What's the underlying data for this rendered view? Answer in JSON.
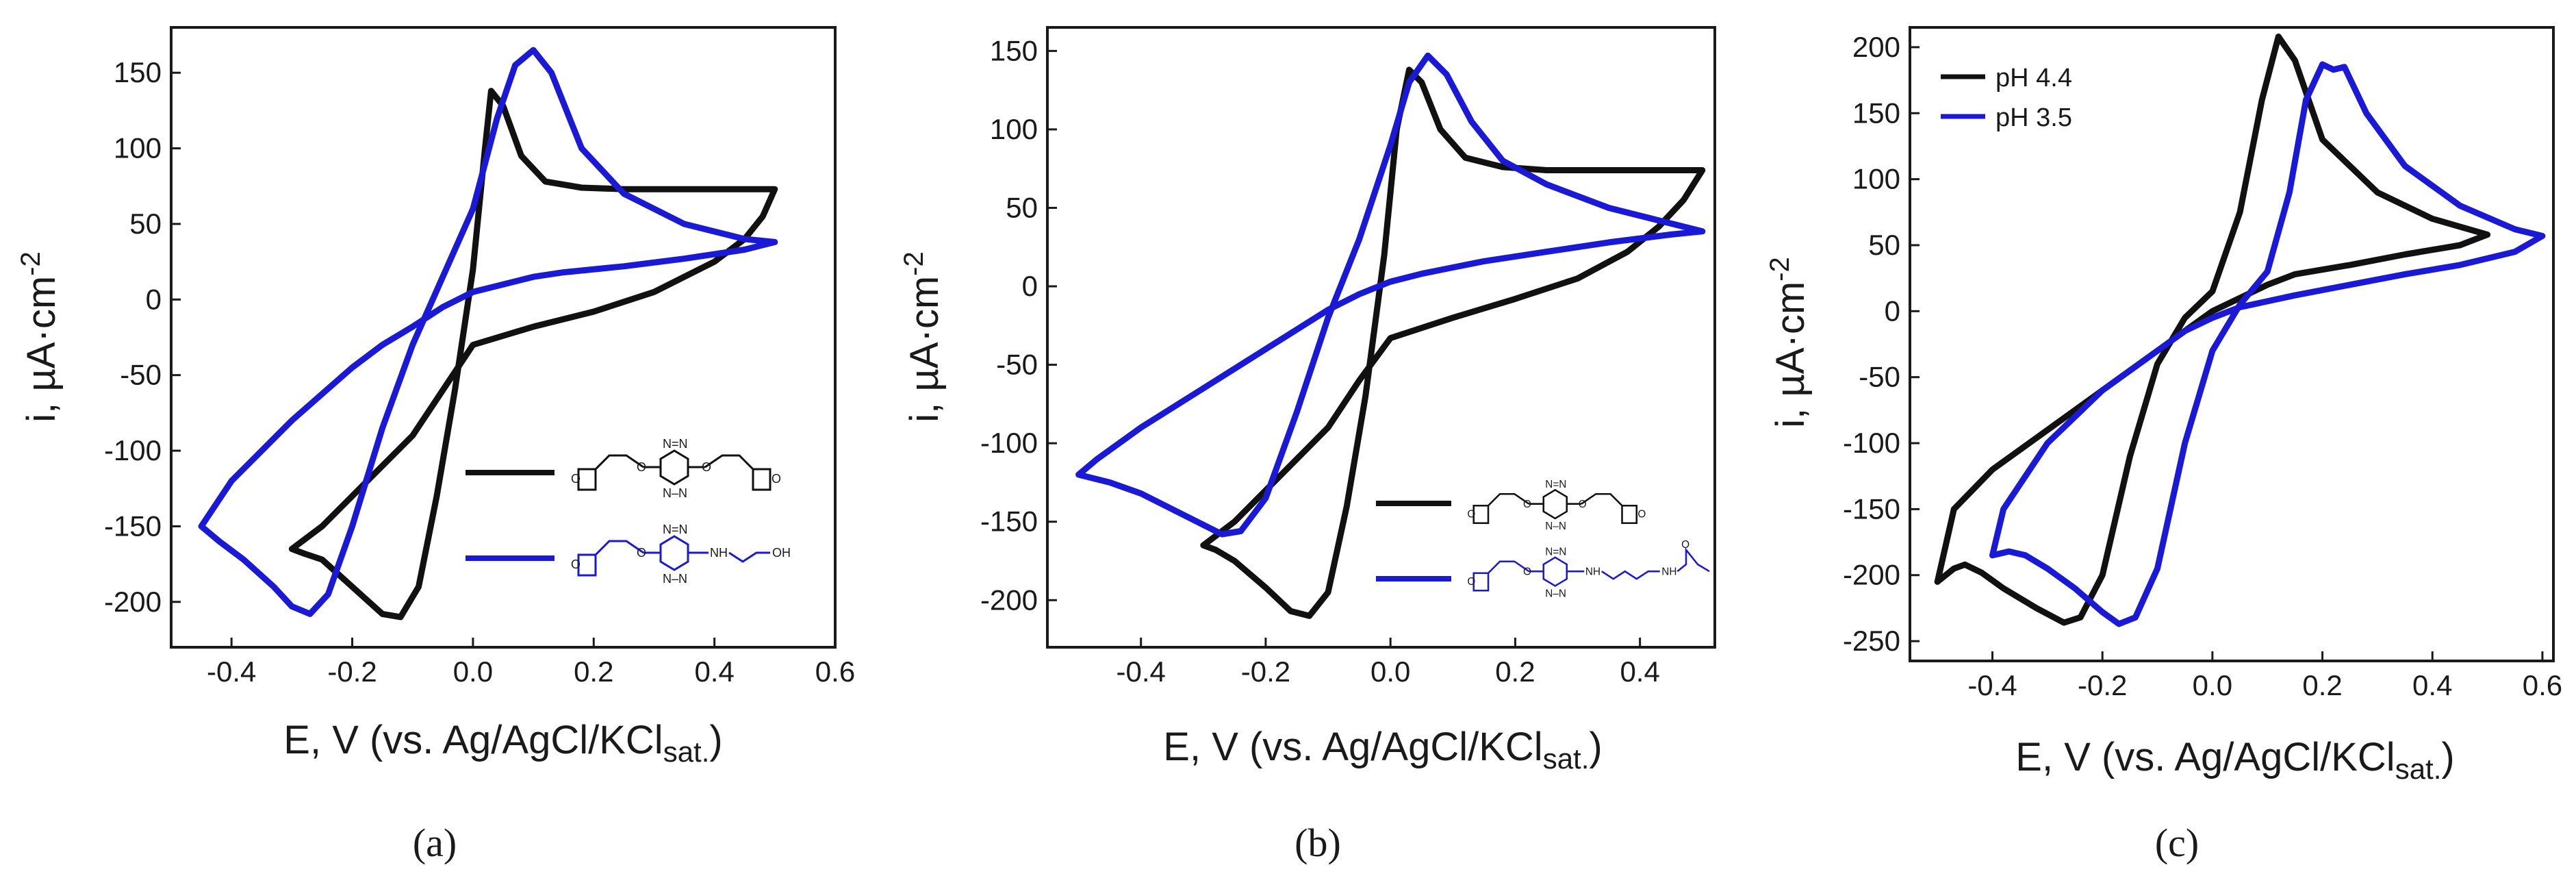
{
  "colors": {
    "black": "#111111",
    "blue": "#1a1ad6",
    "axis": "#1a1a1a"
  },
  "chart_data": [
    {
      "type": "line",
      "caption": "(a)",
      "xlabel_main": "E, V (vs. Ag/AgCl/KCl",
      "xlabel_sub": "sat.",
      "xlabel_close": ")",
      "ylabel": "i, µA·cm",
      "ylabel_sup": "-2",
      "xlim": [
        -0.5,
        0.6
      ],
      "ylim": [
        -230,
        180
      ],
      "xticks": [
        -0.4,
        -0.2,
        0.0,
        0.2,
        0.4,
        0.6
      ],
      "xtick_labels": [
        "-0.4",
        "-0.2",
        "0.0",
        "0.2",
        "0.4",
        "0.6"
      ],
      "yticks": [
        -200,
        -150,
        -100,
        -50,
        0,
        50,
        100,
        150
      ],
      "ytick_labels": [
        "-200",
        "-150",
        "-100",
        "-50",
        "0",
        "50",
        "100",
        "150"
      ],
      "legend": {
        "placement": "bottom-right",
        "type": "molecule-structures"
      },
      "series": [
        {
          "name": "bis(ethoxymorpholinoethoxy)-tetrazine",
          "color": "black",
          "x": [
            -0.3,
            -0.28,
            -0.25,
            -0.2,
            -0.15,
            -0.12,
            -0.09,
            -0.06,
            -0.03,
            0.0,
            0.02,
            0.03,
            0.05,
            0.08,
            0.12,
            0.18,
            0.25,
            0.35,
            0.45,
            0.5,
            0.48,
            0.45,
            0.4,
            0.3,
            0.2,
            0.1,
            0.0,
            -0.05,
            -0.1,
            -0.15,
            -0.2,
            -0.25,
            -0.3
          ],
          "y": [
            -165,
            -168,
            -172,
            -190,
            -208,
            -210,
            -190,
            -130,
            -60,
            20,
            100,
            138,
            128,
            95,
            78,
            74,
            73,
            73,
            73,
            73,
            55,
            40,
            25,
            5,
            -8,
            -18,
            -30,
            -60,
            -90,
            -110,
            -130,
            -150,
            -165
          ]
        },
        {
          "name": "ethoxymorpholino-aminoethanol-tetrazine",
          "color": "blue",
          "x": [
            -0.45,
            -0.42,
            -0.38,
            -0.33,
            -0.3,
            -0.27,
            -0.24,
            -0.2,
            -0.15,
            -0.1,
            -0.05,
            0.0,
            0.04,
            0.07,
            0.1,
            0.13,
            0.18,
            0.25,
            0.35,
            0.45,
            0.5,
            0.45,
            0.35,
            0.25,
            0.15,
            0.1,
            0.05,
            0.0,
            -0.05,
            -0.1,
            -0.15,
            -0.2,
            -0.3,
            -0.4,
            -0.45
          ],
          "y": [
            -150,
            -160,
            -172,
            -190,
            -203,
            -208,
            -195,
            -150,
            -85,
            -30,
            15,
            60,
            120,
            155,
            165,
            150,
            100,
            70,
            50,
            40,
            38,
            33,
            27,
            22,
            18,
            15,
            10,
            5,
            -5,
            -18,
            -30,
            -45,
            -80,
            -120,
            -150
          ]
        }
      ]
    },
    {
      "type": "line",
      "caption": "(b)",
      "xlabel_main": "E, V (vs. Ag/AgCl/KCl",
      "xlabel_sub": "sat.",
      "xlabel_close": ")",
      "ylabel": "i, µA·cm",
      "ylabel_sup": "-2",
      "xlim": [
        -0.55,
        0.52
      ],
      "ylim": [
        -230,
        165
      ],
      "xticks": [
        -0.4,
        -0.2,
        0.0,
        0.2,
        0.4
      ],
      "xtick_labels": [
        "-0.4",
        "-0.2",
        "0.0",
        "0.2",
        "0.4"
      ],
      "yticks": [
        -200,
        -150,
        -100,
        -50,
        0,
        50,
        100,
        150
      ],
      "ytick_labels": [
        "-200",
        "-150",
        "-100",
        "-50",
        "0",
        "50",
        "100",
        "150"
      ],
      "legend": {
        "placement": "bottom-right",
        "type": "molecule-structures"
      },
      "series": [
        {
          "name": "bis(ethoxymorpholinoethoxy)-tetrazine",
          "color": "black",
          "x": [
            -0.3,
            -0.28,
            -0.25,
            -0.2,
            -0.16,
            -0.13,
            -0.1,
            -0.07,
            -0.04,
            -0.01,
            0.01,
            0.03,
            0.05,
            0.08,
            0.12,
            0.18,
            0.25,
            0.35,
            0.45,
            0.5,
            0.47,
            0.43,
            0.38,
            0.3,
            0.2,
            0.1,
            0.0,
            -0.05,
            -0.1,
            -0.15,
            -0.2,
            -0.25,
            -0.3
          ],
          "y": [
            -165,
            -168,
            -175,
            -192,
            -207,
            -210,
            -195,
            -140,
            -70,
            20,
            100,
            138,
            130,
            100,
            82,
            76,
            74,
            74,
            74,
            74,
            55,
            38,
            22,
            5,
            -8,
            -20,
            -33,
            -60,
            -90,
            -110,
            -130,
            -150,
            -165
          ]
        },
        {
          "name": "ethoxymorpholino-methacrylamidopropyl-tetrazine",
          "color": "blue",
          "x": [
            -0.5,
            -0.45,
            -0.4,
            -0.35,
            -0.3,
            -0.27,
            -0.24,
            -0.2,
            -0.15,
            -0.1,
            -0.05,
            0.0,
            0.03,
            0.06,
            0.09,
            0.13,
            0.18,
            0.25,
            0.35,
            0.45,
            0.5,
            0.45,
            0.35,
            0.25,
            0.15,
            0.1,
            0.05,
            0.0,
            -0.05,
            -0.1,
            -0.2,
            -0.3,
            -0.4,
            -0.47,
            -0.5
          ],
          "y": [
            -120,
            -125,
            -132,
            -142,
            -152,
            -158,
            -156,
            -135,
            -80,
            -20,
            30,
            90,
            130,
            147,
            135,
            105,
            80,
            65,
            50,
            40,
            35,
            33,
            28,
            22,
            16,
            12,
            8,
            3,
            -5,
            -15,
            -40,
            -65,
            -90,
            -110,
            -120
          ]
        }
      ]
    },
    {
      "type": "line",
      "caption": "(c)",
      "xlabel_main": "E, V (vs. Ag/AgCl/KCl",
      "xlabel_sub": "sat.",
      "xlabel_close": ")",
      "ylabel": "i, µA·cm",
      "ylabel_sup": "-2",
      "xlim": [
        -0.55,
        0.62
      ],
      "ylim": [
        -265,
        215
      ],
      "xticks": [
        -0.4,
        -0.2,
        0.0,
        0.2,
        0.4,
        0.6
      ],
      "xtick_labels": [
        "-0.4",
        "-0.2",
        "0.0",
        "0.2",
        "0.4",
        "0.6"
      ],
      "yticks": [
        -250,
        -200,
        -150,
        -100,
        -50,
        0,
        50,
        100,
        150,
        200
      ],
      "ytick_labels": [
        "-250",
        "-200",
        "-150",
        "-100",
        "-50",
        "0",
        "50",
        "100",
        "150",
        "200"
      ],
      "legend": {
        "placement": "top-left",
        "entries": [
          "pH 4.4",
          "pH 3.5"
        ]
      },
      "series": [
        {
          "name": "pH 4.4",
          "color": "black",
          "x": [
            -0.5,
            -0.47,
            -0.45,
            -0.42,
            -0.38,
            -0.32,
            -0.27,
            -0.24,
            -0.2,
            -0.15,
            -0.1,
            -0.05,
            0.0,
            0.05,
            0.09,
            0.12,
            0.15,
            0.2,
            0.3,
            0.4,
            0.5,
            0.45,
            0.35,
            0.25,
            0.15,
            0.1,
            0.05,
            0.0,
            -0.05,
            -0.1,
            -0.2,
            -0.3,
            -0.4,
            -0.47,
            -0.5
          ],
          "y": [
            -205,
            -195,
            -192,
            -198,
            -210,
            -225,
            -236,
            -232,
            -200,
            -110,
            -40,
            -5,
            15,
            75,
            160,
            208,
            190,
            130,
            90,
            70,
            58,
            50,
            43,
            35,
            28,
            20,
            10,
            0,
            -15,
            -30,
            -60,
            -90,
            -120,
            -150,
            -205
          ]
        },
        {
          "name": "pH 3.5",
          "color": "blue",
          "x": [
            -0.4,
            -0.37,
            -0.34,
            -0.3,
            -0.25,
            -0.2,
            -0.17,
            -0.14,
            -0.1,
            -0.05,
            0.0,
            0.05,
            0.1,
            0.14,
            0.17,
            0.2,
            0.22,
            0.24,
            0.28,
            0.35,
            0.45,
            0.55,
            0.6,
            0.55,
            0.45,
            0.35,
            0.25,
            0.15,
            0.05,
            0.0,
            -0.05,
            -0.1,
            -0.2,
            -0.3,
            -0.38,
            -0.4
          ],
          "y": [
            -185,
            -182,
            -185,
            -195,
            -210,
            -228,
            -237,
            -232,
            -195,
            -100,
            -30,
            5,
            30,
            90,
            160,
            187,
            183,
            185,
            150,
            110,
            80,
            62,
            57,
            45,
            35,
            28,
            20,
            12,
            3,
            -5,
            -15,
            -30,
            -60,
            -100,
            -150,
            -185
          ]
        }
      ]
    }
  ]
}
